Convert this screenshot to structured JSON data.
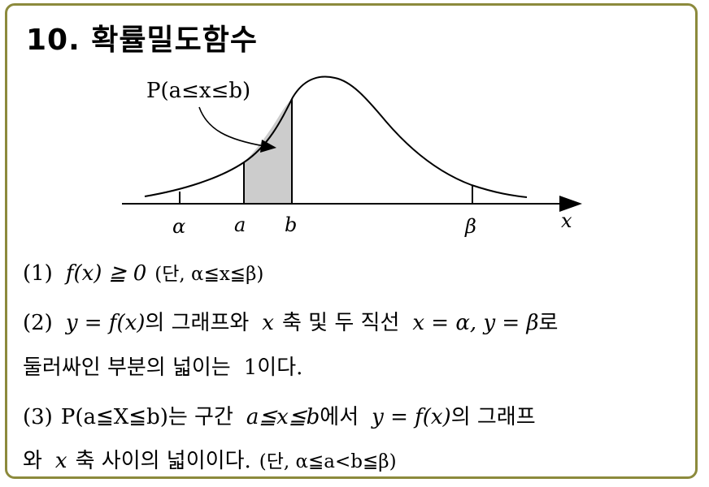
{
  "title": "10. 확률밀도함수",
  "diagram": {
    "prob_label": "P(a≤x≤b)",
    "tick_labels": {
      "alpha": "α",
      "a": "a",
      "b": "b",
      "beta": "β",
      "x_axis": "x"
    }
  },
  "lines": {
    "l1": {
      "num": "(1)",
      "expr": "f(x) ≧ 0",
      "cond": "(단, α≦x≦β)"
    },
    "l2": {
      "num": "(2)",
      "expr1": "y = f(x)",
      "t1": "의 그래프와",
      "var": "x",
      "t2": "축 및 두 직선",
      "expr2": "x = α, y = β",
      "t3": "로"
    },
    "l3": {
      "t1": "둘러싸인 부분의 넓이는",
      "one": "1",
      "t2": "이다."
    },
    "l4": {
      "num": "(3)",
      "prob": "P(a≦X≦b)",
      "t1": "는 구간",
      "range": "a≦x≦b",
      "t2": "에서",
      "expr": "y = f(x)",
      "t3": "의 그래프"
    },
    "l5": {
      "t1": "와",
      "var": "x",
      "t2": "축 사이의 넓이이다.",
      "cond": "(단, α≦a<b≦β)"
    }
  }
}
